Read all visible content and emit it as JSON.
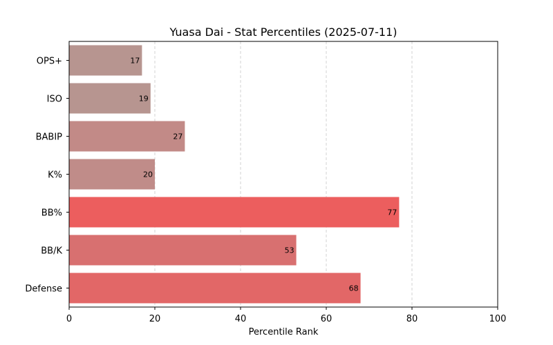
{
  "chart_data": {
    "type": "bar",
    "orientation": "horizontal",
    "title": "Yuasa Dai - Stat Percentiles (2025-07-11)",
    "xlabel": "Percentile Rank",
    "ylabel": "",
    "xlim": [
      0,
      100
    ],
    "xticks": [
      0,
      20,
      40,
      60,
      80,
      100
    ],
    "grid": "x-dashed",
    "categories": [
      "OPS+",
      "ISO",
      "BABIP",
      "K%",
      "BB%",
      "BB/K",
      "Defense"
    ],
    "values": [
      17,
      19,
      27,
      20,
      77,
      53,
      68
    ],
    "colors": [
      "#b79590",
      "#b79590",
      "#c28a87",
      "#c08c89",
      "#ec5e5e",
      "#d87070",
      "#e26767"
    ]
  }
}
